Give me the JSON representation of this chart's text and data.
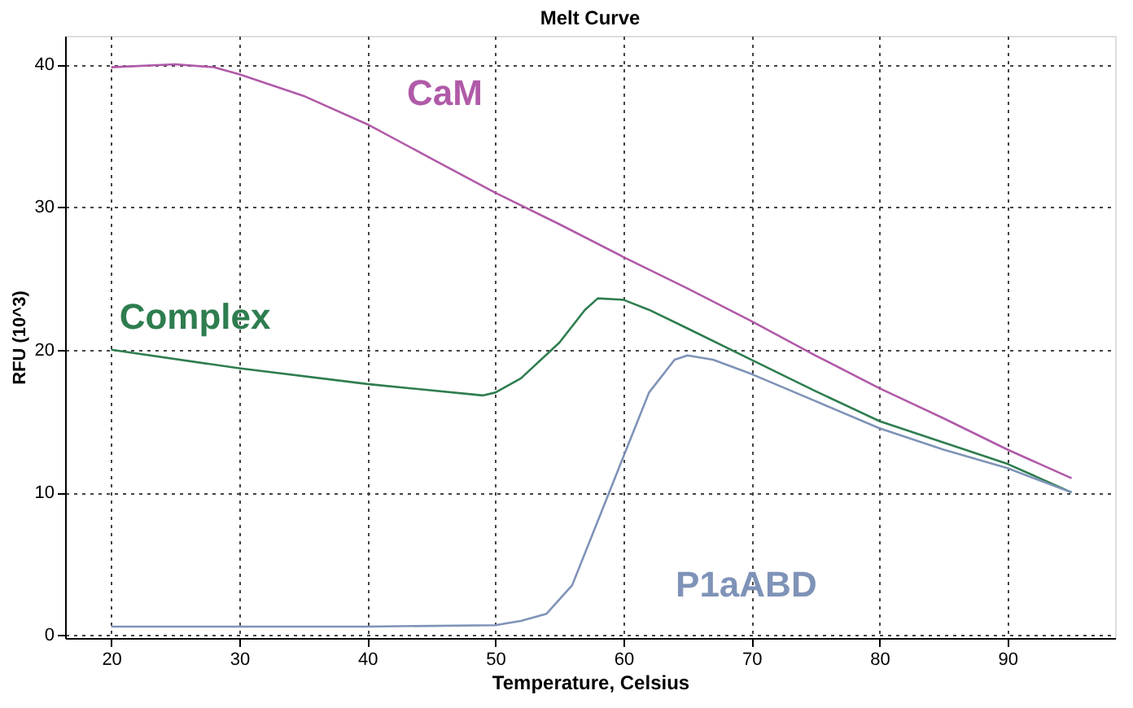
{
  "chart_data": {
    "type": "line",
    "title": "Melt Curve",
    "xlabel": "Temperature, Celsius",
    "ylabel": "RFU (10^3)",
    "xlim": [
      16.4,
      98.4
    ],
    "xticks": [
      20,
      30,
      40,
      50,
      60,
      70,
      80,
      90
    ],
    "ylim": [
      -0.2,
      42
    ],
    "yticks": [
      0,
      10,
      20,
      30,
      40
    ],
    "grid": true,
    "line_style": "solid",
    "marker": "none",
    "legend": false,
    "series": [
      {
        "name": "CaM",
        "color": "#b05aa8",
        "x": [
          20,
          25,
          28,
          30,
          35,
          40,
          45,
          50,
          55,
          60,
          65,
          70,
          75,
          80,
          85,
          90,
          95
        ],
        "values": [
          39.8,
          40,
          39.8,
          39.3,
          37.8,
          35.8,
          33.4,
          31,
          28.8,
          26.5,
          24.3,
          22,
          19.6,
          17.3,
          15.2,
          13,
          11
        ]
      },
      {
        "name": "Complex",
        "color": "#2e7d4f",
        "x": [
          20,
          30,
          40,
          49,
          50,
          52,
          55,
          57,
          58,
          60,
          62,
          65,
          70,
          75,
          80,
          85,
          90,
          95
        ],
        "values": [
          20,
          18.7,
          17.6,
          16.8,
          17,
          18,
          20.5,
          22.8,
          23.6,
          23.5,
          22.8,
          21.5,
          19.3,
          17.1,
          15,
          13.5,
          12,
          10
        ]
      },
      {
        "name": "P1aABD",
        "color": "#7f93b8",
        "x": [
          20,
          30,
          40,
          50,
          52,
          54,
          56,
          58,
          60,
          62,
          64,
          65,
          67,
          70,
          75,
          80,
          85,
          90,
          95
        ],
        "values": [
          0.6,
          0.6,
          0.6,
          0.7,
          1,
          1.5,
          3.5,
          8,
          12.5,
          17,
          19.3,
          19.6,
          19.3,
          18.3,
          16.4,
          14.5,
          13,
          11.7,
          10
        ]
      }
    ]
  }
}
